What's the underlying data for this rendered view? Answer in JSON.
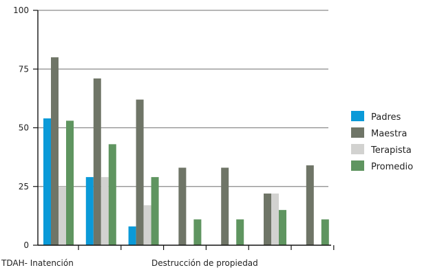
{
  "chart_data": {
    "type": "bar",
    "ylim": [
      0,
      100
    ],
    "y_ticks": [
      "0",
      "25",
      "50",
      "75",
      "100"
    ],
    "grid": true,
    "legend_position": "right",
    "category_labels": [
      "TDAH- Inatención",
      "Destrucción de propiedad"
    ],
    "groups": 7,
    "series": [
      {
        "name": "Padres",
        "color": "#0a9ad8",
        "values": [
          54,
          29,
          8,
          0,
          0,
          0,
          0
        ]
      },
      {
        "name": "Maestra",
        "color": "#6f7567",
        "values": [
          80,
          71,
          62,
          33,
          33,
          22,
          34
        ]
      },
      {
        "name": "Terapista",
        "color": "#d2d2d0",
        "values": [
          25,
          29,
          17,
          0,
          0,
          22,
          0
        ]
      },
      {
        "name": "Promedio",
        "color": "#5f9560",
        "values": [
          53,
          43,
          29,
          11,
          11,
          15,
          11
        ]
      }
    ]
  }
}
